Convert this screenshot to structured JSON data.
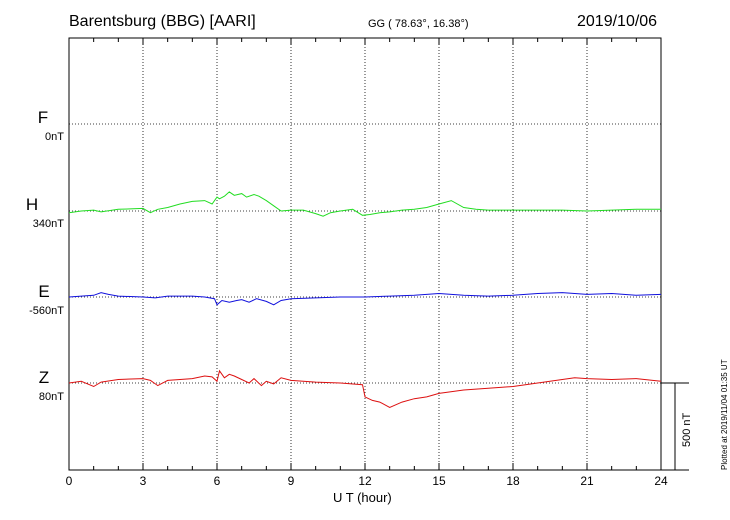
{
  "header": {
    "station": "Barentsburg (BBG)  [AARI]",
    "coords": "GG ( 78.63°,  16.38°)",
    "date": "2019/10/06"
  },
  "footer": {
    "plotted": "Plotted at 2019/11/04 01:35 UT"
  },
  "chart_data": {
    "type": "line",
    "xlabel": "U T (hour)",
    "xlim": [
      0,
      24
    ],
    "xticks": [
      0,
      3,
      6,
      9,
      12,
      15,
      18,
      21,
      24
    ],
    "scale_bar": {
      "value_nT": 500,
      "label": "500 nT"
    },
    "grid": true,
    "series": [
      {
        "name": "F",
        "base_label": "0nT",
        "color": "#f5a400",
        "x": [],
        "y": []
      },
      {
        "name": "H",
        "base_label": "340nT",
        "color": "#22dd22",
        "x": [
          0,
          0.5,
          1.0,
          1.3,
          2.0,
          3.0,
          3.3,
          3.6,
          4.0,
          4.5,
          5.0,
          5.5,
          5.8,
          6.0,
          6.1,
          6.3,
          6.5,
          6.7,
          7.0,
          7.2,
          7.5,
          7.7,
          8.0,
          8.3,
          8.6,
          9.0,
          9.5,
          10.0,
          10.3,
          10.6,
          11.0,
          11.5,
          11.9,
          12.2,
          12.6,
          13.0,
          13.5,
          14.0,
          14.5,
          15.0,
          15.5,
          16.0,
          16.5,
          17.0,
          18.0,
          19.0,
          20.0,
          21.0,
          22.0,
          23.0,
          24.0
        ],
        "y": [
          -10,
          0,
          5,
          -5,
          10,
          15,
          -10,
          10,
          20,
          40,
          55,
          60,
          40,
          80,
          70,
          85,
          110,
          90,
          100,
          80,
          95,
          85,
          60,
          30,
          0,
          5,
          5,
          -15,
          -30,
          -10,
          0,
          10,
          -25,
          -20,
          -10,
          -5,
          5,
          10,
          20,
          40,
          60,
          20,
          10,
          5,
          5,
          5,
          5,
          0,
          5,
          10,
          10
        ]
      },
      {
        "name": "E",
        "base_label": "-560nT",
        "color": "#1010dd",
        "x": [
          0,
          0.5,
          1.0,
          1.3,
          1.6,
          2.0,
          3.0,
          3.5,
          4.0,
          5.0,
          5.5,
          5.9,
          6.0,
          6.2,
          6.5,
          6.8,
          7.0,
          7.3,
          7.6,
          8.0,
          8.3,
          8.6,
          9.0,
          10.0,
          11.0,
          12.0,
          13.0,
          14.0,
          15.0,
          16.0,
          17.0,
          18.0,
          19.0,
          20.0,
          21.0,
          22.0,
          23.0,
          24.0
        ],
        "y": [
          0,
          5,
          10,
          25,
          15,
          5,
          0,
          -5,
          5,
          5,
          0,
          -10,
          -45,
          -20,
          -30,
          -20,
          -15,
          -30,
          -10,
          -25,
          -45,
          -20,
          -10,
          -5,
          0,
          0,
          5,
          10,
          20,
          10,
          5,
          10,
          20,
          25,
          15,
          20,
          10,
          15
        ]
      },
      {
        "name": "Z",
        "base_label": "80nT",
        "color": "#dd1010",
        "x": [
          0,
          0.5,
          1.0,
          1.3,
          2.0,
          3.0,
          3.3,
          3.6,
          4.0,
          5.0,
          5.5,
          5.8,
          6.0,
          6.1,
          6.3,
          6.5,
          6.7,
          7.0,
          7.3,
          7.5,
          7.8,
          8.0,
          8.3,
          8.6,
          9.0,
          9.5,
          10.0,
          11.0,
          11.9,
          12.0,
          12.3,
          12.6,
          13.0,
          13.5,
          14.0,
          14.5,
          15.0,
          16.0,
          17.0,
          18.0,
          19.0,
          20.0,
          20.5,
          21.0,
          22.0,
          23.0,
          24.0
        ],
        "y": [
          0,
          10,
          -20,
          5,
          20,
          25,
          15,
          -15,
          15,
          25,
          40,
          35,
          10,
          70,
          30,
          50,
          40,
          20,
          0,
          25,
          -15,
          10,
          -5,
          30,
          15,
          10,
          5,
          0,
          -10,
          -80,
          -100,
          -110,
          -140,
          -110,
          -90,
          -80,
          -60,
          -40,
          -30,
          -20,
          0,
          20,
          30,
          25,
          20,
          25,
          10
        ]
      }
    ]
  }
}
